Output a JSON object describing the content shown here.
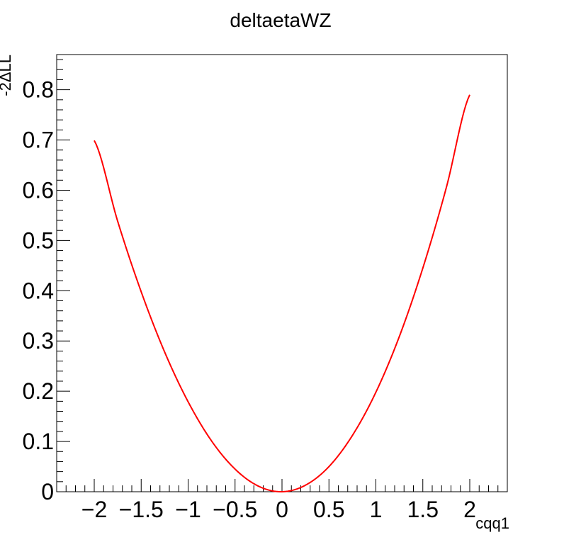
{
  "chart_data": {
    "type": "line",
    "title": "deltaetaWZ",
    "xlabel": "cqq1",
    "ylabel": "-2ΔLL",
    "xlim": [
      -2.4,
      2.4
    ],
    "ylim": [
      0,
      0.87
    ],
    "xticks": [
      -2,
      -1.5,
      -1,
      -0.5,
      0,
      0.5,
      1,
      1.5,
      2
    ],
    "xtick_labels": [
      "−2",
      "−1.5",
      "−1",
      "−0.5",
      "0",
      "0.5",
      "1",
      "1.5",
      "2"
    ],
    "yticks": [
      0,
      0.1,
      0.2,
      0.3,
      0.4,
      0.5,
      0.6,
      0.7,
      0.8
    ],
    "ytick_labels": [
      "0",
      "0.1",
      "0.2",
      "0.3",
      "0.4",
      "0.5",
      "0.6",
      "0.7",
      "0.8"
    ],
    "grid": false,
    "legend": "none",
    "series": [
      {
        "color": "#ff0000",
        "x": [
          -2.0,
          -1.75,
          -1.5,
          -1.25,
          -1.0,
          -0.75,
          -0.5,
          -0.25,
          0.0,
          0.25,
          0.5,
          0.75,
          1.0,
          1.25,
          1.5,
          1.75,
          2.0
        ],
        "y": [
          0.699,
          0.538,
          0.398,
          0.278,
          0.179,
          0.101,
          0.045,
          0.011,
          0.0,
          0.013,
          0.05,
          0.112,
          0.198,
          0.309,
          0.445,
          0.605,
          0.79
        ]
      }
    ]
  }
}
